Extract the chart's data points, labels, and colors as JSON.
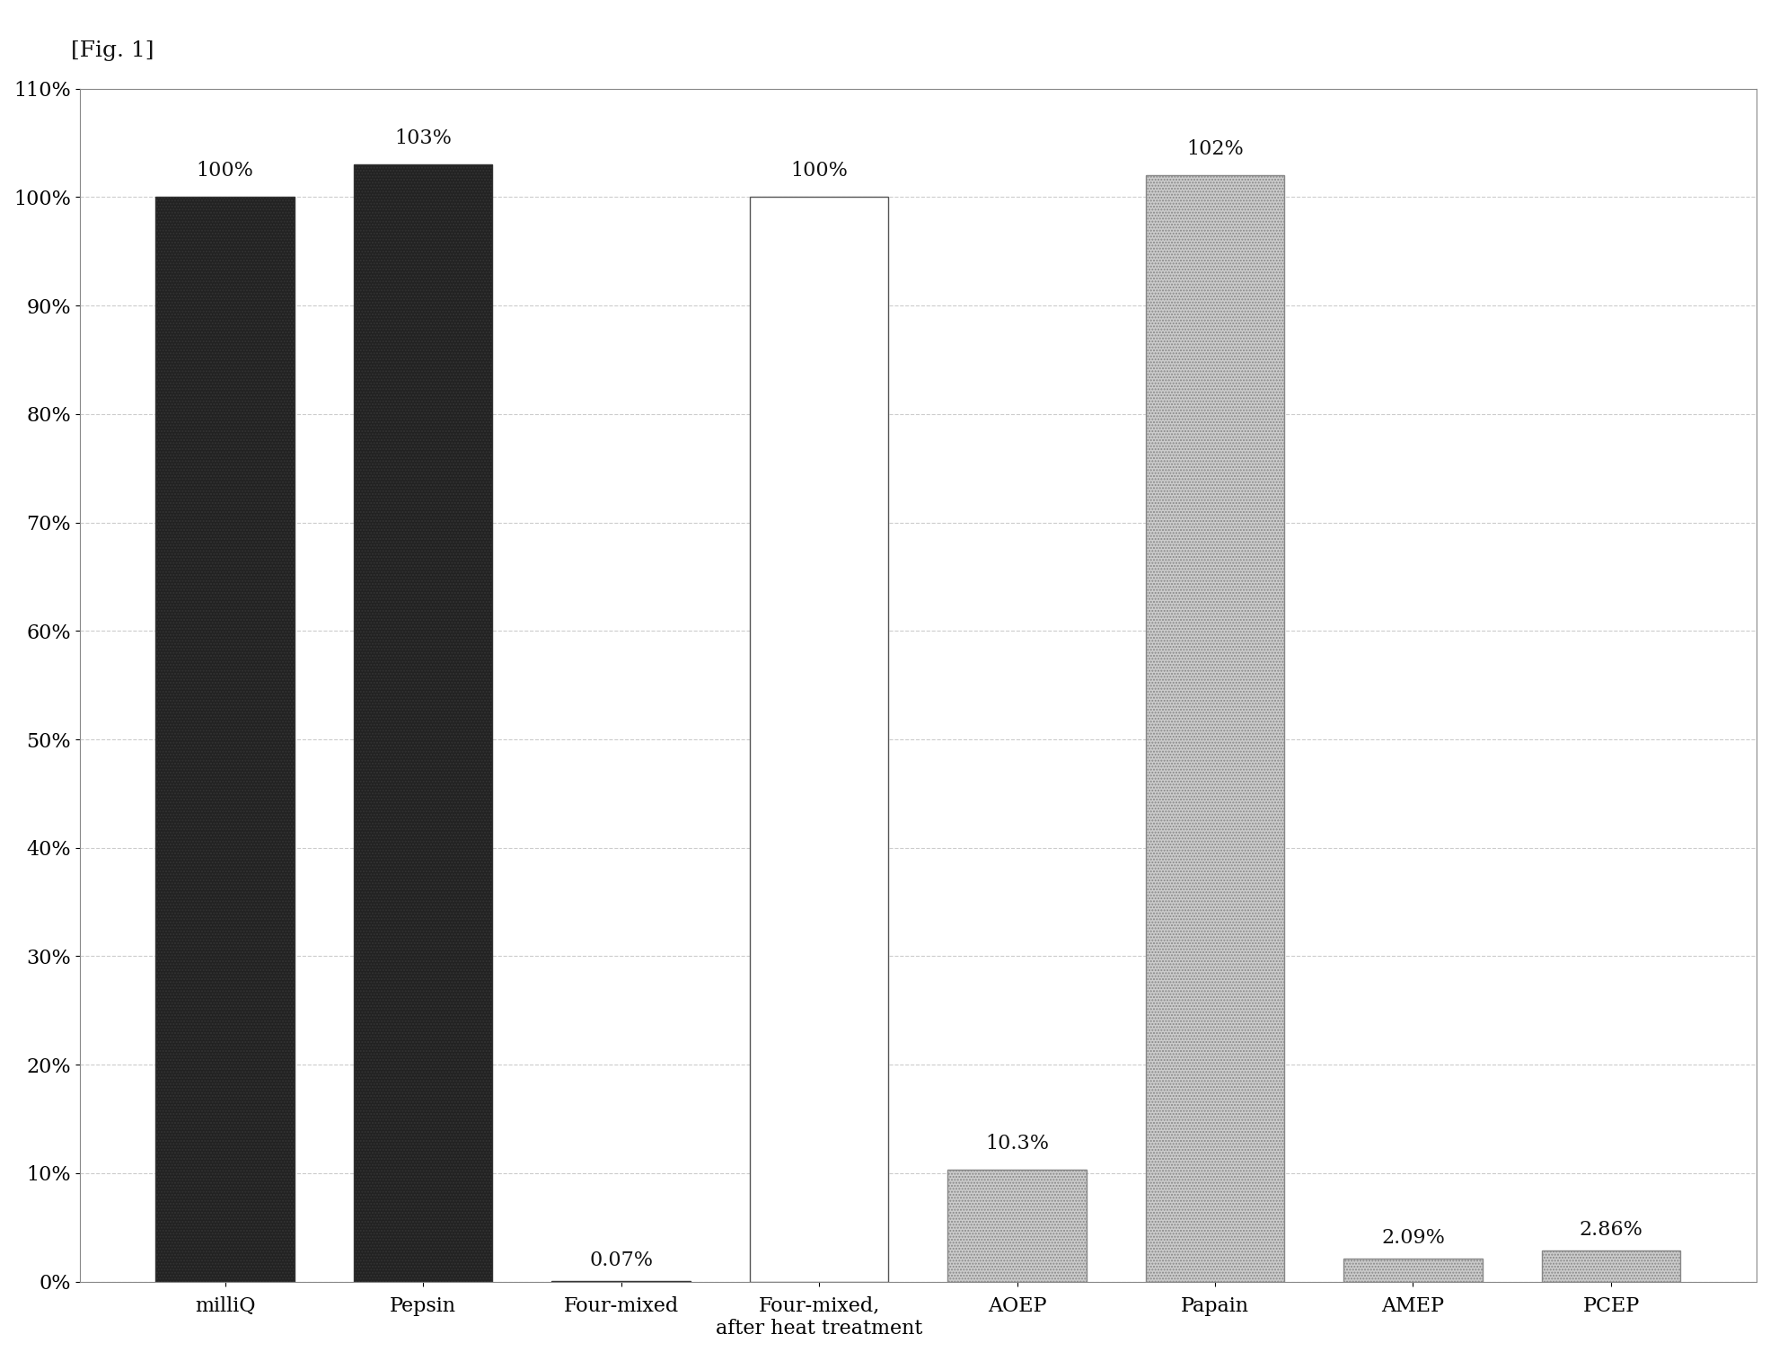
{
  "categories": [
    "milliQ",
    "Pepsin",
    "Four-mixed",
    "Four-mixed,\nafter heat treatment",
    "AOEP",
    "Papain",
    "AMEP",
    "PCEP"
  ],
  "values": [
    100,
    103,
    0.07,
    100,
    10.3,
    102,
    2.09,
    2.86
  ],
  "bar_labels": [
    "100%",
    "103%",
    "0.07%",
    "100%",
    "10.3%",
    "102%",
    "2.09%",
    "2.86%"
  ],
  "bar_colors": [
    "dark_dotted",
    "dark_dotted",
    "dark_dotted",
    "white",
    "light_dotted",
    "light_dotted",
    "light_dotted",
    "light_dotted"
  ],
  "ylim": [
    0,
    110
  ],
  "yticks": [
    0,
    10,
    20,
    30,
    40,
    50,
    60,
    70,
    80,
    90,
    100,
    110
  ],
  "ytick_labels": [
    "0%",
    "10%",
    "20%",
    "30%",
    "40%",
    "50%",
    "60%",
    "70%",
    "80%",
    "90%",
    "100%",
    "110%"
  ],
  "title": "[Fig. 1]",
  "background_color": "#ffffff",
  "grid_color": "#cccccc",
  "bar_edge_color": "#888888",
  "bar_width": 0.7,
  "fig_width": 19.71,
  "fig_height": 15.05,
  "dpi": 100
}
